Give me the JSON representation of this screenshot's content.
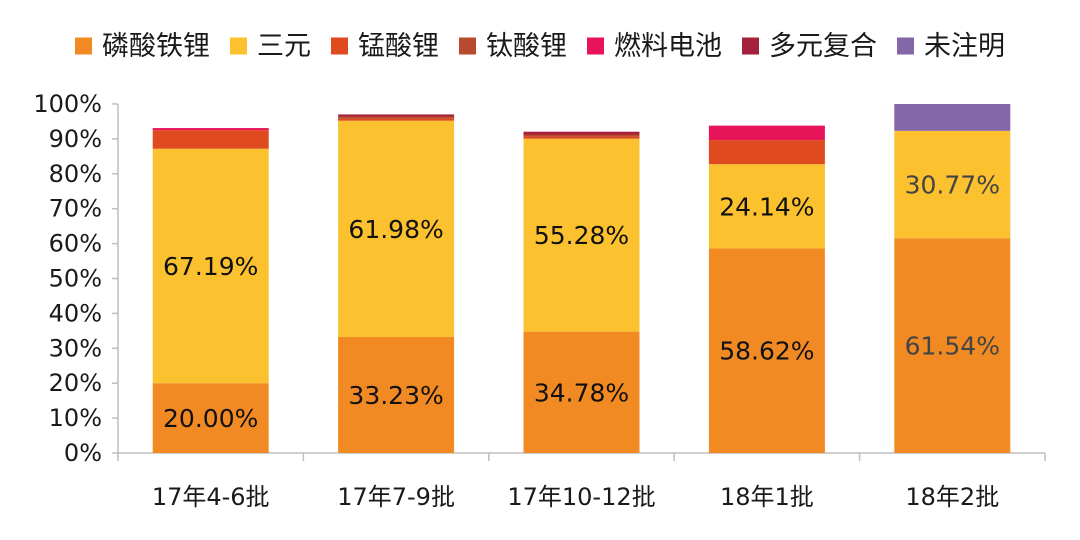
{
  "chart_data": {
    "type": "bar",
    "stacked": true,
    "normalized_percent": true,
    "categories": [
      "17年4-6批",
      "17年7-9批",
      "17年10-12批",
      "18年1批",
      "18年2批"
    ],
    "series": [
      {
        "name": "磷酸铁锂",
        "color": "#F28A24",
        "values": [
          20.0,
          33.23,
          34.78,
          58.62,
          61.54
        ]
      },
      {
        "name": "三元",
        "color": "#FBC12E",
        "values": [
          67.19,
          61.98,
          55.28,
          24.14,
          30.77
        ]
      },
      {
        "name": "锰酸锂",
        "color": "#E04A1F",
        "values": [
          5.31,
          0.6,
          0.6,
          6.9,
          0
        ]
      },
      {
        "name": "钛酸锂",
        "color": "#B84A2E",
        "values": [
          0,
          0.6,
          0.6,
          0,
          0
        ]
      },
      {
        "name": "燃料电池",
        "color": "#E8145A",
        "values": [
          0.6,
          0,
          0,
          4.14,
          0
        ]
      },
      {
        "name": "多元复合",
        "color": "#A5203C",
        "values": [
          0,
          0.6,
          0.8,
          0,
          0
        ]
      },
      {
        "name": "未注明",
        "color": "#8467A9",
        "values": [
          0,
          0,
          0,
          0,
          7.69
        ]
      }
    ],
    "data_labels": [
      {
        "series": "磷酸铁锂",
        "category": "17年4-6批",
        "text": "20.00%",
        "color": "#111111"
      },
      {
        "series": "三元",
        "category": "17年4-6批",
        "text": "67.19%",
        "color": "#111111"
      },
      {
        "series": "磷酸铁锂",
        "category": "17年7-9批",
        "text": "33.23%",
        "color": "#111111"
      },
      {
        "series": "三元",
        "category": "17年7-9批",
        "text": "61.98%",
        "color": "#111111"
      },
      {
        "series": "磷酸铁锂",
        "category": "17年10-12批",
        "text": "34.78%",
        "color": "#111111"
      },
      {
        "series": "三元",
        "category": "17年10-12批",
        "text": "55.28%",
        "color": "#111111"
      },
      {
        "series": "磷酸铁锂",
        "category": "18年1批",
        "text": "58.62%",
        "color": "#111111"
      },
      {
        "series": "三元",
        "category": "18年1批",
        "text": "24.14%",
        "color": "#111111"
      },
      {
        "series": "磷酸铁锂",
        "category": "18年2批",
        "text": "61.54%",
        "color": "#444444"
      },
      {
        "series": "三元",
        "category": "18年2批",
        "text": "30.77%",
        "color": "#444444"
      }
    ],
    "yticks": [
      "0%",
      "10%",
      "20%",
      "30%",
      "40%",
      "50%",
      "60%",
      "70%",
      "80%",
      "90%",
      "100%"
    ],
    "ylim": [
      0,
      100
    ],
    "grid": false,
    "legend_position": "top",
    "axis_color": "#bfbfbf"
  }
}
